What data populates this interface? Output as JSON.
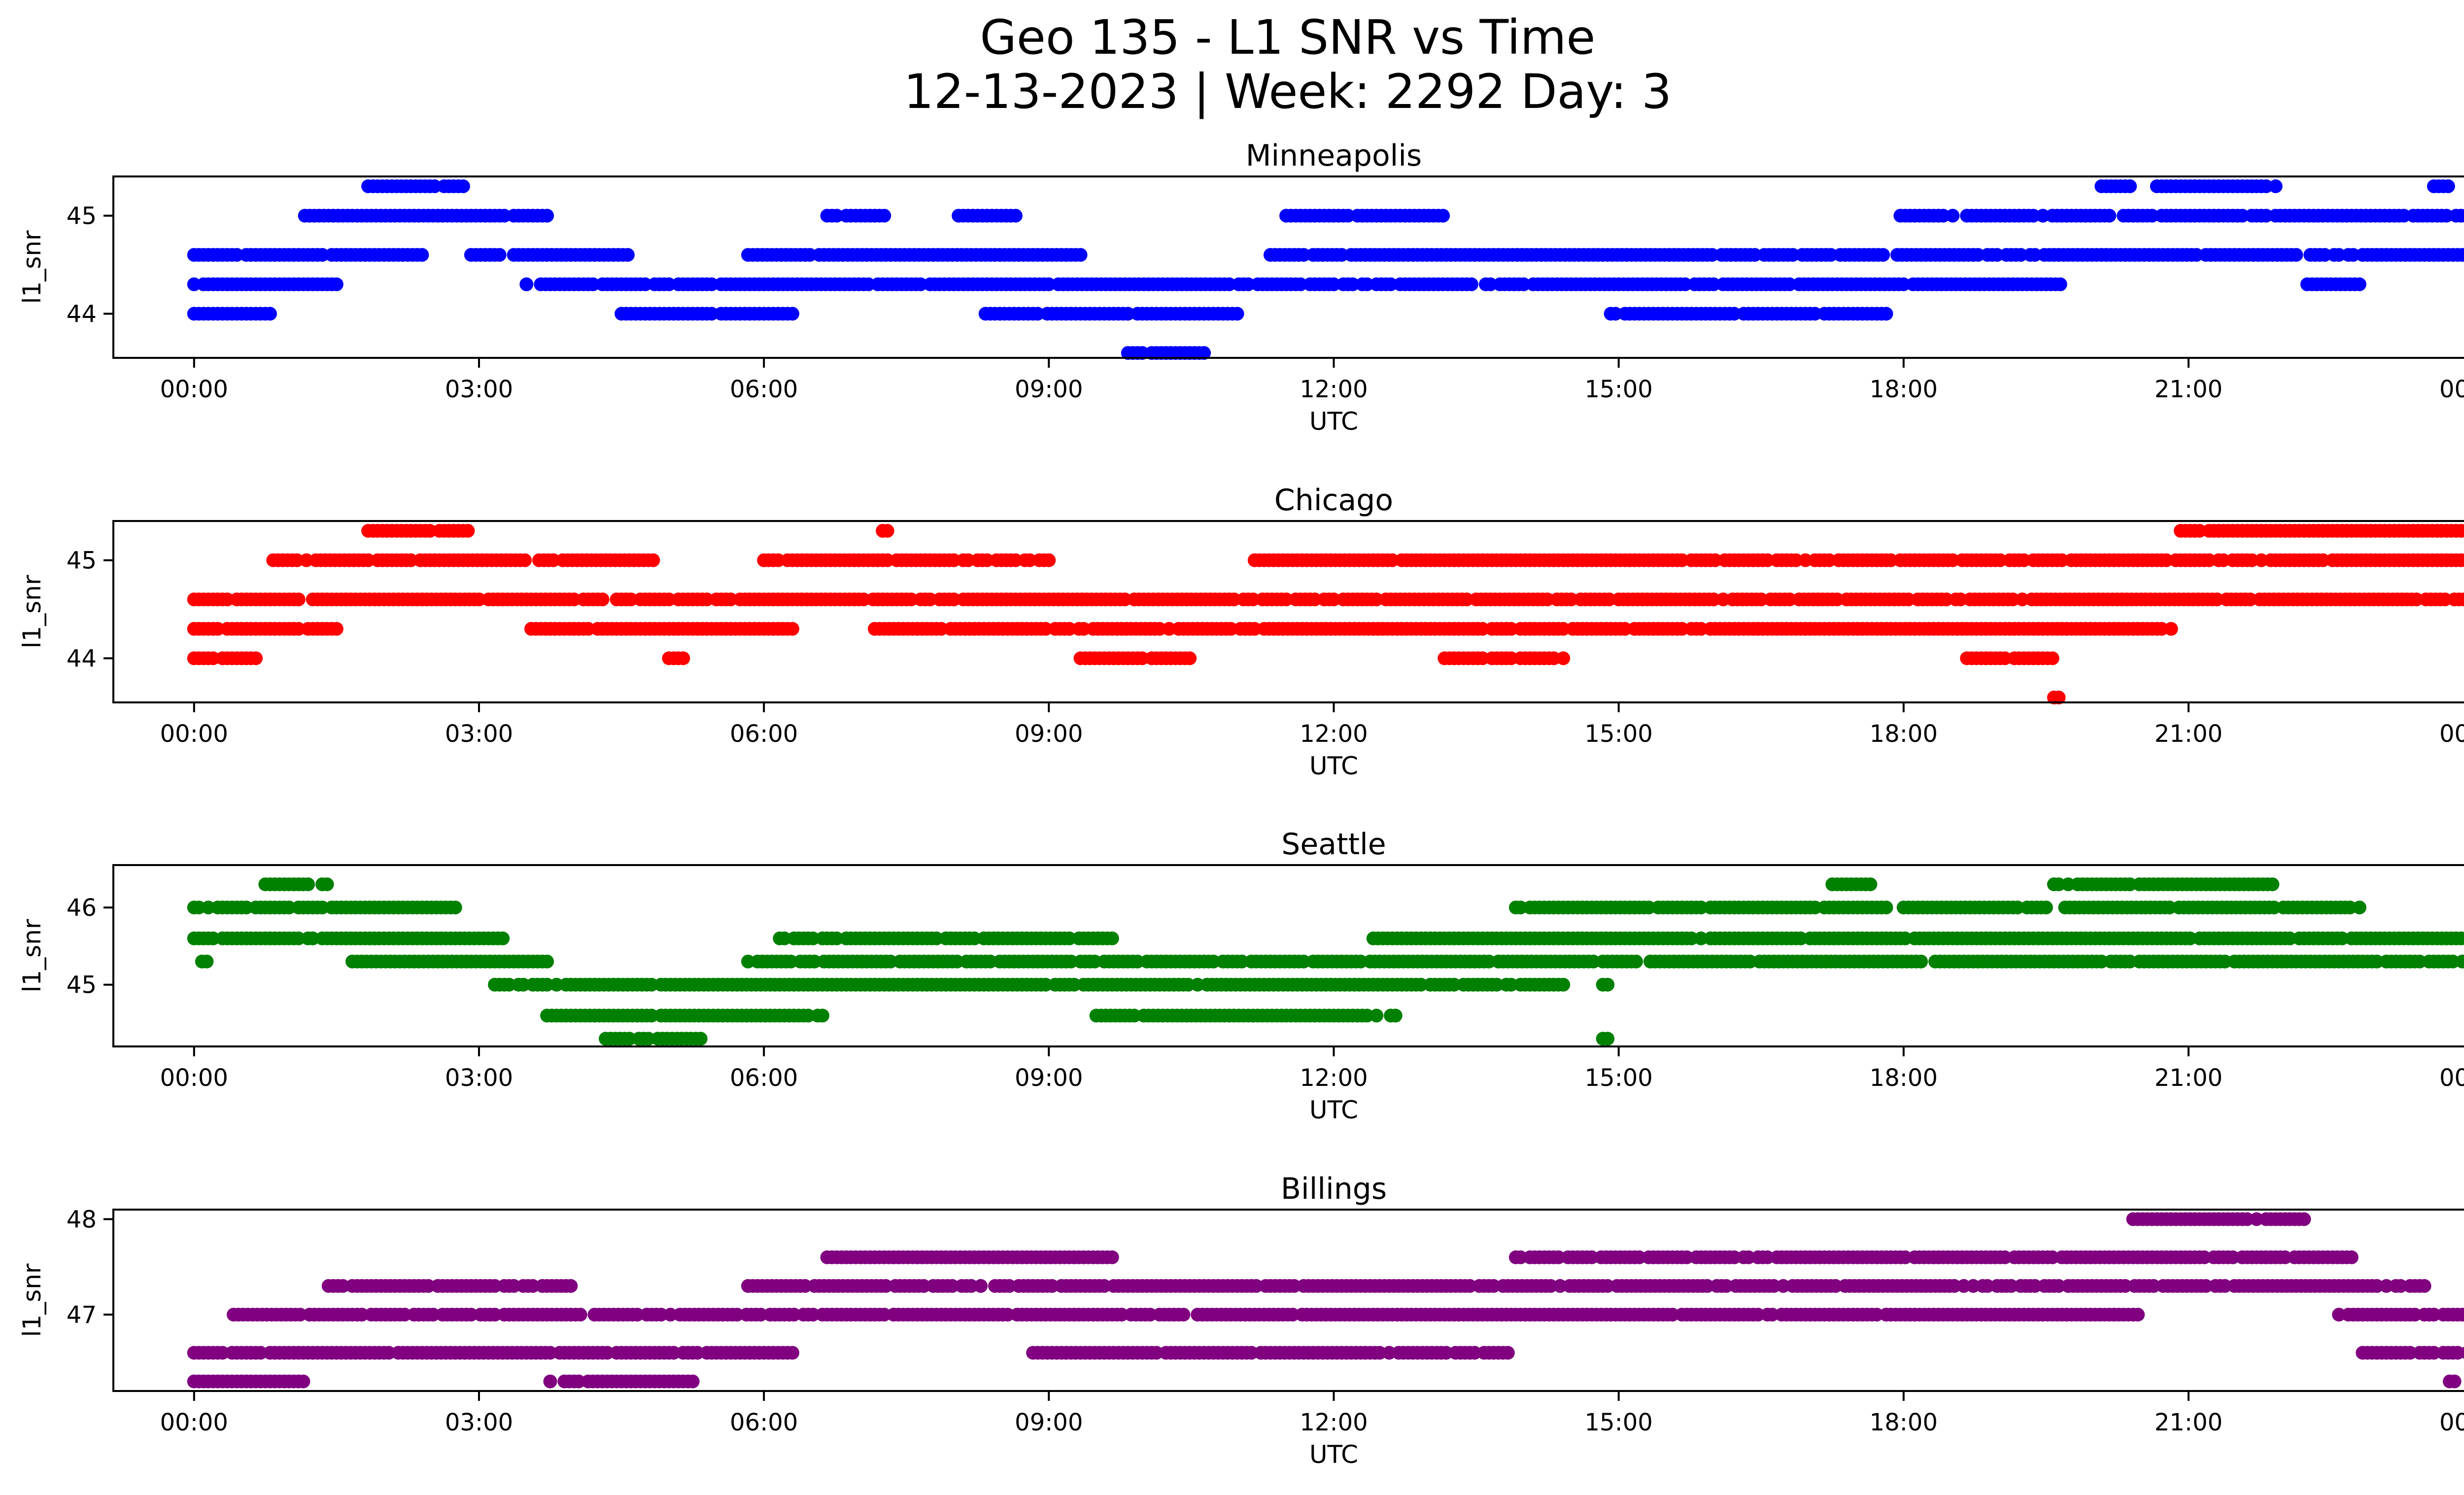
{
  "figure": {
    "title_line1": "Geo 135 - L1 SNR vs Time",
    "title_line2": "12-13-2023 | Week: 2292 Day: 3"
  },
  "chart_data": [
    {
      "type": "scatter",
      "title": "Minneapolis",
      "xlabel": "UTC",
      "ylabel": "l1_snr",
      "color": "#0000ff",
      "xlim": [
        "2023-12-12 23:09",
        "2023-12-14 00:51"
      ],
      "ylim": [
        43.55,
        45.4
      ],
      "xticks": [
        "00:00",
        "03:00",
        "06:00",
        "09:00",
        "12:00",
        "15:00",
        "18:00",
        "21:00",
        "00:00"
      ],
      "yticks": [
        44,
        45
      ],
      "points": [
        {
          "from": "00:00",
          "to": "00:50",
          "y": 44.0
        },
        {
          "from": "00:00",
          "to": "01:30",
          "y": 44.3
        },
        {
          "from": "00:00",
          "to": "02:25",
          "y": 44.6
        },
        {
          "from": "01:10",
          "to": "03:45",
          "y": 45.0
        },
        {
          "from": "01:50",
          "to": "02:50",
          "y": 45.3
        },
        {
          "from": "02:55",
          "to": "04:35",
          "y": 44.6
        },
        {
          "from": "03:30",
          "to": "19:40",
          "y": 44.3
        },
        {
          "from": "04:30",
          "to": "06:20",
          "y": 44.0
        },
        {
          "from": "05:50",
          "to": "09:20",
          "y": 44.6
        },
        {
          "from": "06:40",
          "to": "07:20",
          "y": 45.0
        },
        {
          "from": "08:00",
          "to": "08:40",
          "y": 45.0
        },
        {
          "from": "08:20",
          "to": "11:00",
          "y": 44.0
        },
        {
          "from": "09:50",
          "to": "10:40",
          "y": 43.6
        },
        {
          "from": "11:20",
          "to": "24:00",
          "y": 44.6
        },
        {
          "from": "11:30",
          "to": "13:10",
          "y": 45.0
        },
        {
          "from": "14:55",
          "to": "17:50",
          "y": 44.0
        },
        {
          "from": "17:55",
          "to": "24:00",
          "y": 45.0
        },
        {
          "from": "20:05",
          "to": "20:25",
          "y": 45.3
        },
        {
          "from": "20:40",
          "to": "21:55",
          "y": 45.3
        },
        {
          "from": "22:15",
          "to": "22:50",
          "y": 44.3
        },
        {
          "from": "23:35",
          "to": "23:45",
          "y": 45.3
        }
      ]
    },
    {
      "type": "scatter",
      "title": "Chicago",
      "xlabel": "UTC",
      "ylabel": "l1_snr",
      "color": "#ff0000",
      "xlim": [
        "2023-12-12 23:09",
        "2023-12-14 00:51"
      ],
      "ylim": [
        43.55,
        45.4
      ],
      "xticks": [
        "00:00",
        "03:00",
        "06:00",
        "09:00",
        "12:00",
        "15:00",
        "18:00",
        "21:00",
        "00:00"
      ],
      "yticks": [
        44,
        45
      ],
      "points": [
        {
          "from": "00:00",
          "to": "00:40",
          "y": 44.0
        },
        {
          "from": "00:00",
          "to": "01:30",
          "y": 44.3
        },
        {
          "from": "00:00",
          "to": "23:55",
          "y": 44.6
        },
        {
          "from": "00:50",
          "to": "04:50",
          "y": 45.0
        },
        {
          "from": "01:50",
          "to": "02:55",
          "y": 45.3
        },
        {
          "from": "03:30",
          "to": "06:20",
          "y": 44.3
        },
        {
          "from": "05:00",
          "to": "05:10",
          "y": 44.0
        },
        {
          "from": "06:00",
          "to": "09:00",
          "y": 45.0
        },
        {
          "from": "07:15",
          "to": "07:20",
          "y": 45.3
        },
        {
          "from": "07:10",
          "to": "20:50",
          "y": 44.3
        },
        {
          "from": "09:20",
          "to": "10:30",
          "y": 44.0
        },
        {
          "from": "11:10",
          "to": "24:00",
          "y": 45.0
        },
        {
          "from": "13:10",
          "to": "14:25",
          "y": 44.0
        },
        {
          "from": "18:40",
          "to": "19:35",
          "y": 44.0
        },
        {
          "from": "19:35",
          "to": "19:40",
          "y": 43.6
        },
        {
          "from": "20:55",
          "to": "24:00",
          "y": 45.3
        }
      ]
    },
    {
      "type": "scatter",
      "title": "Seattle",
      "xlabel": "UTC",
      "ylabel": "l1_snr",
      "color": "#008000",
      "xlim": [
        "2023-12-12 23:09",
        "2023-12-14 00:51"
      ],
      "ylim": [
        44.2,
        46.55
      ],
      "xticks": [
        "00:00",
        "03:00",
        "06:00",
        "09:00",
        "12:00",
        "15:00",
        "18:00",
        "21:00",
        "00:00"
      ],
      "yticks": [
        45,
        46
      ],
      "points": [
        {
          "from": "00:00",
          "to": "02:45",
          "y": 46.0
        },
        {
          "from": "00:00",
          "to": "03:15",
          "y": 45.6
        },
        {
          "from": "00:05",
          "to": "00:10",
          "y": 45.3
        },
        {
          "from": "00:45",
          "to": "01:25",
          "y": 46.3
        },
        {
          "from": "01:40",
          "to": "03:45",
          "y": 45.3
        },
        {
          "from": "03:10",
          "to": "14:25",
          "y": 45.0
        },
        {
          "from": "03:40",
          "to": "06:40",
          "y": 44.6
        },
        {
          "from": "04:20",
          "to": "05:20",
          "y": 44.3
        },
        {
          "from": "05:50",
          "to": "24:00",
          "y": 45.3
        },
        {
          "from": "06:10",
          "to": "09:40",
          "y": 45.6
        },
        {
          "from": "09:30",
          "to": "12:40",
          "y": 44.6
        },
        {
          "from": "12:25",
          "to": "24:00",
          "y": 45.6
        },
        {
          "from": "13:55",
          "to": "17:50",
          "y": 46.0
        },
        {
          "from": "14:50",
          "to": "14:55",
          "y": 45.0
        },
        {
          "from": "14:50",
          "to": "14:55",
          "y": 44.3
        },
        {
          "from": "17:15",
          "to": "17:40",
          "y": 46.3
        },
        {
          "from": "18:00",
          "to": "22:50",
          "y": 46.0
        },
        {
          "from": "19:35",
          "to": "21:55",
          "y": 46.3
        }
      ]
    },
    {
      "type": "scatter",
      "title": "Billings",
      "xlabel": "UTC",
      "ylabel": "l1_snr",
      "color": "#800080",
      "xlim": [
        "2023-12-12 23:09",
        "2023-12-14 00:51"
      ],
      "ylim": [
        46.2,
        48.1
      ],
      "xticks": [
        "00:00",
        "03:00",
        "06:00",
        "09:00",
        "12:00",
        "15:00",
        "18:00",
        "21:00",
        "00:00"
      ],
      "yticks": [
        47,
        48
      ],
      "points": [
        {
          "from": "00:00",
          "to": "01:10",
          "y": 46.3
        },
        {
          "from": "00:00",
          "to": "06:20",
          "y": 46.6
        },
        {
          "from": "00:25",
          "to": "20:30",
          "y": 47.0
        },
        {
          "from": "01:25",
          "to": "04:00",
          "y": 47.3
        },
        {
          "from": "03:45",
          "to": "05:15",
          "y": 46.3
        },
        {
          "from": "05:50",
          "to": "23:30",
          "y": 47.3
        },
        {
          "from": "06:40",
          "to": "09:40",
          "y": 47.6
        },
        {
          "from": "08:50",
          "to": "13:50",
          "y": 46.6
        },
        {
          "from": "13:55",
          "to": "22:45",
          "y": 47.6
        },
        {
          "from": "20:25",
          "to": "22:15",
          "y": 48.0
        },
        {
          "from": "22:35",
          "to": "24:00",
          "y": 47.0
        },
        {
          "from": "22:50",
          "to": "24:00",
          "y": 46.6
        },
        {
          "from": "23:45",
          "to": "23:50",
          "y": 46.3
        }
      ]
    }
  ]
}
